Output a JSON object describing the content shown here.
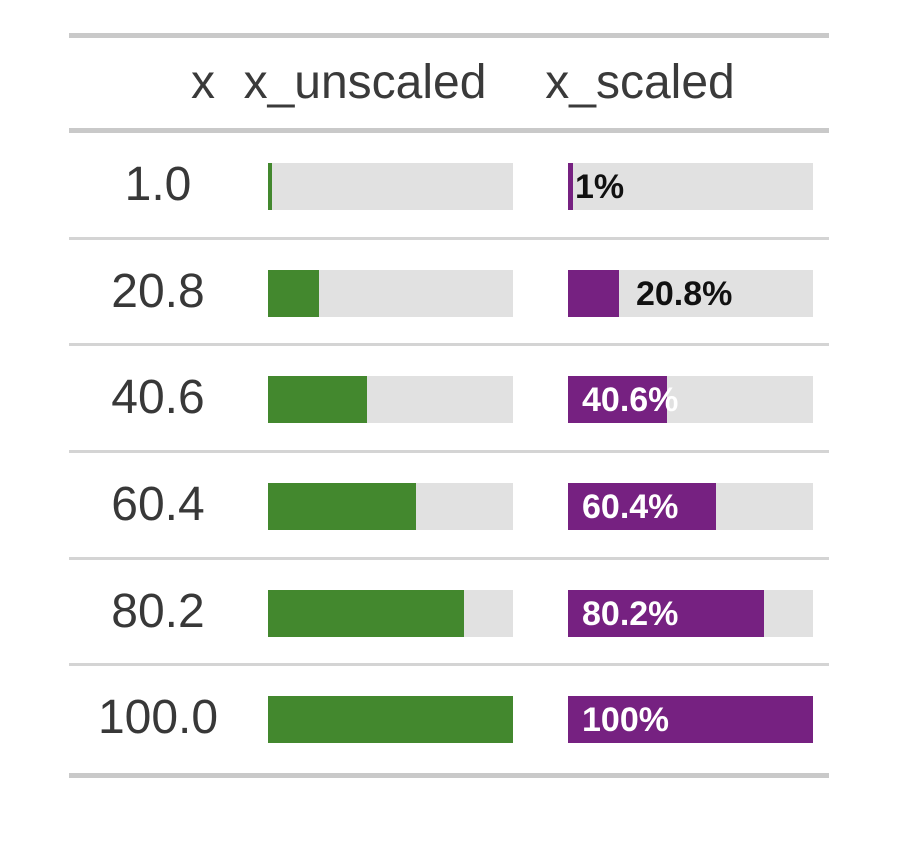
{
  "style": {
    "page_bg": "#ffffff",
    "header_text": "#3a3a3a",
    "cell_text": "#383838",
    "unscaled_fill": "#43882e",
    "scaled_fill": "#762181",
    "bar_track": "#e1e1e1",
    "bar_label_inside": "#ffffff",
    "bar_label_outside": "#111111",
    "rule_strong": "#c9c9c9",
    "rule_light": "#d4d4d4"
  },
  "chart_data": {
    "type": "table",
    "columns": [
      "x",
      "x_unscaled",
      "x_scaled"
    ],
    "bar_range": [
      0,
      100
    ],
    "rows": [
      {
        "x": "1.0",
        "value": 1.0,
        "unscaled_pct": 1,
        "scaled_pct": 1,
        "scaled_label": "1%",
        "label_placement": "outside-flush"
      },
      {
        "x": "20.8",
        "value": 20.8,
        "unscaled_pct": 20.8,
        "scaled_pct": 20.8,
        "scaled_label": "20.8%",
        "label_placement": "outside"
      },
      {
        "x": "40.6",
        "value": 40.6,
        "unscaled_pct": 40.6,
        "scaled_pct": 40.6,
        "scaled_label": "40.6%",
        "label_placement": "inside"
      },
      {
        "x": "60.4",
        "value": 60.4,
        "unscaled_pct": 60.4,
        "scaled_pct": 60.4,
        "scaled_label": "60.4%",
        "label_placement": "inside"
      },
      {
        "x": "80.2",
        "value": 80.2,
        "unscaled_pct": 80.2,
        "scaled_pct": 80.2,
        "scaled_label": "80.2%",
        "label_placement": "inside"
      },
      {
        "x": "100.0",
        "value": 100.0,
        "unscaled_pct": 100,
        "scaled_pct": 100,
        "scaled_label": "100%",
        "label_placement": "inside"
      }
    ]
  }
}
